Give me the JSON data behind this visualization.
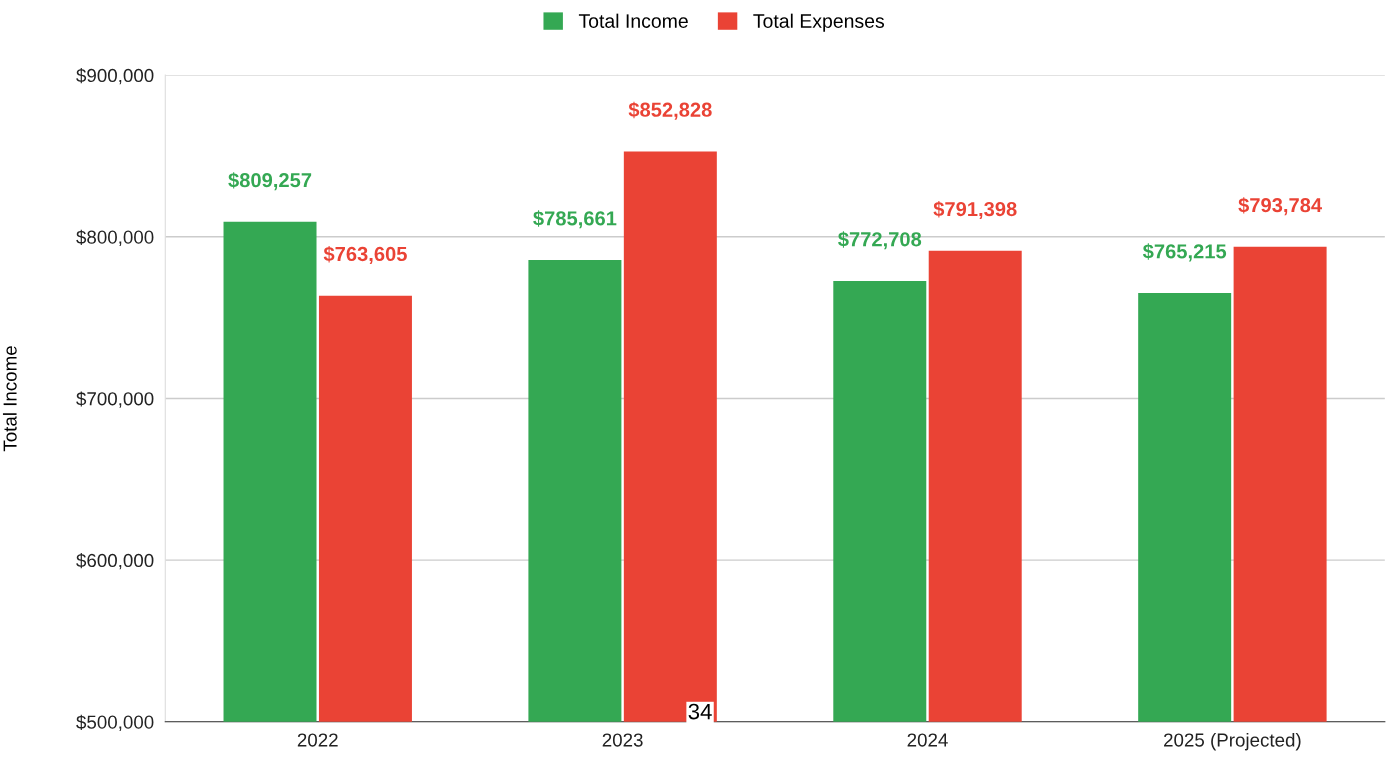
{
  "chart_data": {
    "type": "bar",
    "ylabel": "Total Income",
    "categories": [
      "2022",
      "2023",
      "2024",
      "2025 (Projected)"
    ],
    "series": [
      {
        "name": "Total Income",
        "color": "#34a853",
        "values": [
          809257,
          785661,
          772708,
          765215
        ],
        "value_labels": [
          "$809,257",
          "$785,661",
          "$772,708",
          "$765,215"
        ]
      },
      {
        "name": "Total Expenses",
        "color": "#ea4335",
        "values": [
          763605,
          852828,
          791398,
          793784
        ],
        "value_labels": [
          "$763,605",
          "$852,828",
          "$791,398",
          "$793,784"
        ]
      }
    ],
    "ylim": [
      500000,
      900000
    ],
    "yticks": [
      {
        "value": 500000,
        "label": "$500,000"
      },
      {
        "value": 600000,
        "label": "$600,000"
      },
      {
        "value": 700000,
        "label": "$700,000"
      },
      {
        "value": 800000,
        "label": "$800,000"
      },
      {
        "value": 900000,
        "label": "$900,000"
      }
    ],
    "grid": "y",
    "legend": "top",
    "annotations": [
      "34"
    ]
  }
}
